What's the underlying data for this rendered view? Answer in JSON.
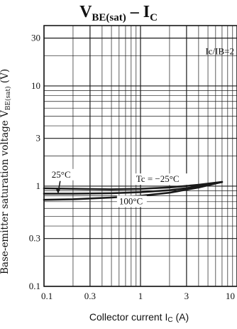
{
  "chart_data": {
    "type": "line",
    "title_main": "V",
    "title_sub": "BE(sat)",
    "title_rest": " – I",
    "title_sub2": "C",
    "xlabel_main": "Collector current I",
    "xlabel_sub": "C",
    "xlabel_unit": " (A)",
    "ylabel_main": "Base-emitter saturation voltage V",
    "ylabel_sub": "BE(sat)",
    "ylabel_unit": " (V)",
    "xscale": "log",
    "yscale": "log",
    "xlim": [
      0.1,
      10
    ],
    "ylim": [
      0.1,
      40
    ],
    "grid": true,
    "x_ticks": [
      {
        "value": 0.1,
        "label": "0.1"
      },
      {
        "value": 0.3,
        "label": "0.3"
      },
      {
        "value": 1,
        "label": "1"
      },
      {
        "value": 3,
        "label": "3"
      },
      {
        "value": 10,
        "label": "10"
      }
    ],
    "y_ticks": [
      {
        "value": 0.1,
        "label": "0.1"
      },
      {
        "value": 0.3,
        "label": "0.3"
      },
      {
        "value": 1,
        "label": "1"
      },
      {
        "value": 3,
        "label": "3"
      },
      {
        "value": 10,
        "label": "10"
      },
      {
        "value": 30,
        "label": "30"
      }
    ],
    "condition_label": "Ic/IB=2",
    "series": [
      {
        "name": "Tc = −25°C",
        "x": [
          0.1,
          0.2,
          0.5,
          1,
          2,
          4,
          7
        ],
        "y": [
          0.95,
          0.94,
          0.93,
          0.94,
          0.97,
          1.03,
          1.1
        ]
      },
      {
        "name": "25°C",
        "x": [
          0.1,
          0.2,
          0.5,
          1,
          2,
          4,
          7
        ],
        "y": [
          0.84,
          0.84,
          0.85,
          0.87,
          0.91,
          0.99,
          1.1
        ]
      },
      {
        "name": "100°C",
        "x": [
          0.1,
          0.2,
          0.5,
          1,
          2,
          4,
          7
        ],
        "y": [
          0.73,
          0.74,
          0.77,
          0.8,
          0.86,
          0.97,
          1.1
        ]
      }
    ],
    "annotations": [
      {
        "text": "Tc = −25°C",
        "at": [
          0.9,
          1.1
        ]
      },
      {
        "text": "25°C",
        "at": [
          0.12,
          1.22
        ]
      },
      {
        "text": "100°C",
        "at": [
          0.6,
          0.66
        ]
      }
    ],
    "line_color": "#1a1a1a",
    "grid_color": "#1a1a1a"
  }
}
